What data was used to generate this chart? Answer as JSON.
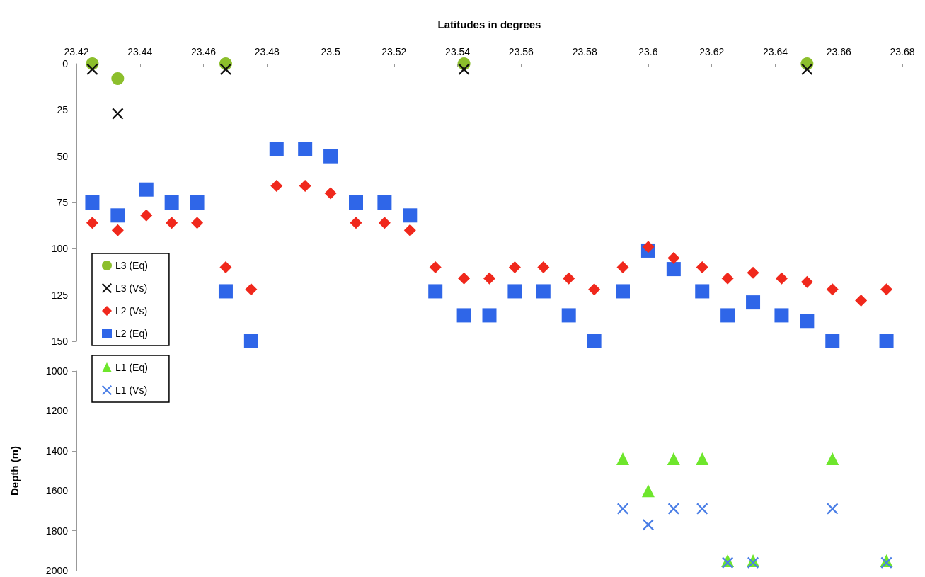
{
  "chart_data": [
    {
      "type": "scatter",
      "xlabel": "Latitudes in degrees",
      "xlim": [
        23.42,
        23.68
      ],
      "xticks": [
        23.42,
        23.44,
        23.46,
        23.48,
        23.5,
        23.52,
        23.54,
        23.56,
        23.58,
        23.6,
        23.62,
        23.64,
        23.66,
        23.68
      ],
      "ylim": [
        150,
        0
      ],
      "yticks": [
        0,
        25,
        50,
        75,
        100,
        125,
        150
      ],
      "grid": false,
      "legend": "bottom left",
      "x": [
        23.425,
        23.433,
        23.442,
        23.45,
        23.458,
        23.467,
        23.475,
        23.483,
        23.492,
        23.5,
        23.508,
        23.517,
        23.525,
        23.533,
        23.542,
        23.55,
        23.558,
        23.567,
        23.575,
        23.583,
        23.592,
        23.6,
        23.608,
        23.617,
        23.625,
        23.633,
        23.642,
        23.65,
        23.658,
        23.667,
        23.675
      ],
      "series": [
        {
          "name": "L3 (Eq)",
          "color": "#8cbf2c",
          "marker": "circle",
          "x": [
            23.425,
            23.433,
            23.467,
            23.542,
            23.65
          ],
          "values": [
            0,
            8,
            0,
            0,
            0
          ]
        },
        {
          "name": "L3 (Vs)",
          "color": "#111111",
          "marker": "cross",
          "x": [
            23.425,
            23.433,
            23.467,
            23.542,
            23.65
          ],
          "values": [
            3,
            27,
            3,
            3,
            3
          ]
        },
        {
          "name": "L2 (Vs)",
          "color": "#f0281c",
          "marker": "diamond",
          "values": [
            86,
            90,
            82,
            86,
            86,
            110,
            122,
            66,
            66,
            70,
            86,
            86,
            90,
            110,
            116,
            116,
            110,
            110,
            116,
            122,
            110,
            99,
            105,
            110,
            116,
            113,
            116,
            118,
            122,
            128,
            122
          ]
        },
        {
          "name": "L2 (Eq)",
          "color": "#2f66e8",
          "marker": "square",
          "values": [
            75,
            82,
            68,
            75,
            75,
            123,
            150,
            46,
            46,
            50,
            75,
            75,
            82,
            123,
            136,
            136,
            123,
            123,
            136,
            150,
            123,
            101,
            111,
            123,
            136,
            129,
            136,
            139,
            150,
            null,
            150
          ]
        }
      ]
    },
    {
      "type": "scatter",
      "ylabel": "Depth (m)",
      "xlim": [
        23.42,
        23.68
      ],
      "xticks": [
        23.42,
        23.44,
        23.46,
        23.48,
        23.5,
        23.52,
        23.54,
        23.56,
        23.58,
        23.6,
        23.62,
        23.64,
        23.66,
        23.68
      ],
      "ylim": [
        2000,
        1000
      ],
      "yticks": [
        1000,
        1200,
        1400,
        1600,
        1800,
        2000
      ],
      "grid": false,
      "legend": "top left",
      "tick_labels": "y",
      "x": [
        23.592,
        23.6,
        23.608,
        23.617,
        23.625,
        23.633,
        23.658,
        23.675
      ],
      "series": [
        {
          "name": "L1 (Eq)",
          "color": "#6ee62c",
          "marker": "triangle",
          "values": [
            1440,
            1600,
            1440,
            1440,
            1950,
            1950,
            1440,
            1950
          ]
        },
        {
          "name": "L1 (Vs)",
          "color": "#4a7ee6",
          "marker": "cross",
          "values": [
            1690,
            1770,
            1690,
            1690,
            1960,
            1960,
            1690,
            1960
          ]
        }
      ]
    }
  ]
}
